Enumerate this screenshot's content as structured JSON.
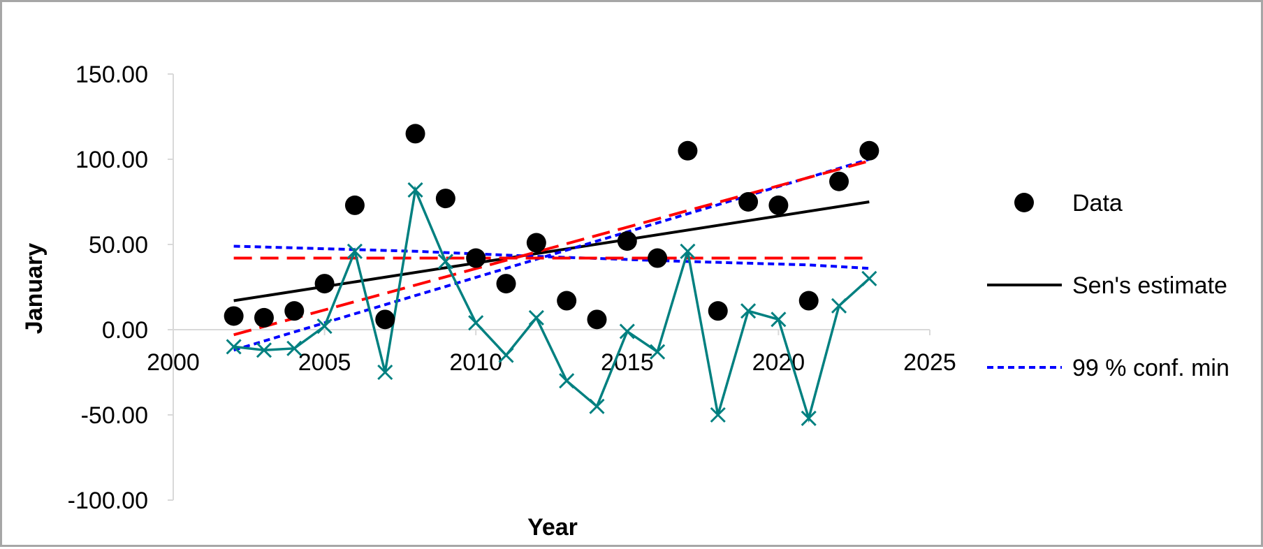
{
  "chart_data": {
    "type": "scatter",
    "title": "",
    "xlabel": "Year",
    "ylabel": "January",
    "xlim": [
      2000,
      2025
    ],
    "ylim": [
      -100,
      150
    ],
    "xticks": [
      2000,
      2005,
      2010,
      2015,
      2020,
      2025
    ],
    "yticks": [
      -100,
      -50,
      0,
      50,
      100,
      150
    ],
    "xtick_labels": [
      "2000",
      "2005",
      "2010",
      "2015",
      "2020",
      "2025"
    ],
    "ytick_labels": [
      "-100.00",
      "-50.00",
      "0.00",
      "50.00",
      "100.00",
      "150.00"
    ],
    "grid": false,
    "legend_position": "right",
    "series": [
      {
        "name": "Data",
        "kind": "points",
        "color": "#000000",
        "x": [
          2002,
          2003,
          2004,
          2005,
          2006,
          2007,
          2008,
          2009,
          2010,
          2011,
          2012,
          2013,
          2014,
          2015,
          2016,
          2017,
          2018,
          2019,
          2020,
          2021,
          2022,
          2023
        ],
        "y": [
          8,
          7,
          11,
          27,
          73,
          6,
          115,
          77,
          42,
          27,
          51,
          17,
          6,
          52,
          42,
          105,
          11,
          75,
          73,
          17,
          87,
          105
        ]
      },
      {
        "name": "Sen's estimate",
        "kind": "line",
        "color": "#000000",
        "dash": "solid",
        "x": [
          2002,
          2023
        ],
        "y": [
          17,
          75
        ]
      },
      {
        "name": "99 % conf. min",
        "kind": "line",
        "color": "#0000ff",
        "dash": "dotted",
        "x": [
          2002,
          2023
        ],
        "y": [
          -12,
          100
        ]
      },
      {
        "kind": "line",
        "color": "#0000ff",
        "dash": "dotted",
        "x": [
          2002,
          2008,
          2012,
          2017,
          2021,
          2023
        ],
        "y": [
          49,
          46,
          43,
          40,
          38,
          36
        ]
      },
      {
        "kind": "line",
        "color": "#ff0000",
        "dash": "dashed",
        "x": [
          2002,
          2023
        ],
        "y": [
          -3,
          99
        ]
      },
      {
        "kind": "line",
        "color": "#ff0000",
        "dash": "dashed",
        "x": [
          2002,
          2023
        ],
        "y": [
          42,
          42
        ]
      },
      {
        "kind": "line-markers",
        "color": "#008080",
        "dash": "solid",
        "x": [
          2002,
          2003,
          2004,
          2005,
          2006,
          2007,
          2008,
          2009,
          2010,
          2011,
          2012,
          2013,
          2014,
          2015,
          2016,
          2017,
          2018,
          2019,
          2020,
          2021,
          2022,
          2023
        ],
        "y": [
          -10,
          -12,
          -11,
          2,
          46,
          -25,
          82,
          40,
          4,
          -15,
          7,
          -30,
          -45,
          -1,
          -13,
          46,
          -50,
          11,
          6,
          -52,
          14,
          30
        ]
      }
    ],
    "legend": [
      {
        "label": "Data",
        "series_index": 0
      },
      {
        "label": "Sen's estimate",
        "series_index": 1
      },
      {
        "label": "99 % conf. min",
        "series_index": 2
      }
    ]
  }
}
